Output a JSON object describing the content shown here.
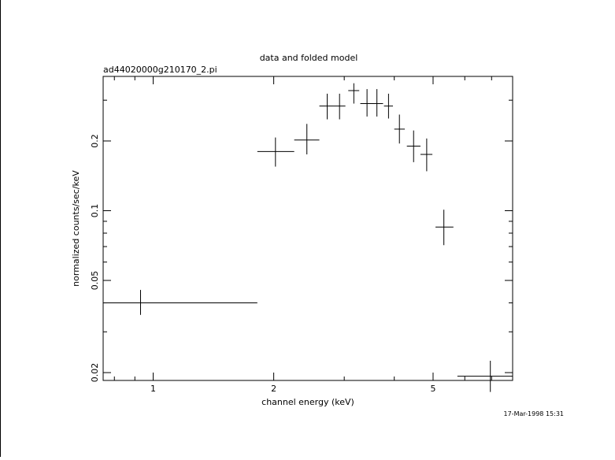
{
  "chart_data": {
    "type": "scatter",
    "title": "data and folded model",
    "subtitle": "ad44020000g210170_2.pi",
    "xlabel": "channel energy (keV)",
    "ylabel": "normalized counts/sec/keV",
    "timestamp": "17-Mar-1998 15:31",
    "x_scale": "log",
    "y_scale": "log",
    "xlim": [
      0.75,
      7.9
    ],
    "ylim": [
      0.0185,
      0.38
    ],
    "x_ticks": [
      {
        "value": 1,
        "label": "1"
      },
      {
        "value": 2,
        "label": "2"
      },
      {
        "value": 5,
        "label": "5"
      }
    ],
    "y_ticks": [
      {
        "value": 0.02,
        "label": "0.02"
      },
      {
        "value": 0.05,
        "label": "0.05"
      },
      {
        "value": 0.1,
        "label": "0.1"
      },
      {
        "value": 0.2,
        "label": "0.2"
      }
    ],
    "grid": false,
    "series": [
      {
        "points": [
          {
            "x": 0.93,
            "x_lo": 0.75,
            "x_hi": 1.82,
            "y": 0.04,
            "y_lo": 0.0355,
            "y_hi": 0.0455
          },
          {
            "x": 2.02,
            "x_lo": 1.82,
            "x_hi": 2.25,
            "y": 0.18,
            "y_lo": 0.155,
            "y_hi": 0.207
          },
          {
            "x": 2.42,
            "x_lo": 2.25,
            "x_hi": 2.6,
            "y": 0.202,
            "y_lo": 0.175,
            "y_hi": 0.237
          },
          {
            "x": 2.72,
            "x_lo": 2.6,
            "x_hi": 2.82,
            "y": 0.283,
            "y_lo": 0.248,
            "y_hi": 0.32
          },
          {
            "x": 2.92,
            "x_lo": 2.82,
            "x_hi": 3.02,
            "y": 0.283,
            "y_lo": 0.248,
            "y_hi": 0.32
          },
          {
            "x": 3.17,
            "x_lo": 3.07,
            "x_hi": 3.27,
            "y": 0.33,
            "y_lo": 0.29,
            "y_hi": 0.355
          },
          {
            "x": 3.42,
            "x_lo": 3.29,
            "x_hi": 3.55,
            "y": 0.29,
            "y_lo": 0.255,
            "y_hi": 0.335
          },
          {
            "x": 3.62,
            "x_lo": 3.53,
            "x_hi": 3.75,
            "y": 0.29,
            "y_lo": 0.255,
            "y_hi": 0.335
          },
          {
            "x": 3.87,
            "x_lo": 3.77,
            "x_hi": 3.97,
            "y": 0.283,
            "y_lo": 0.25,
            "y_hi": 0.32
          },
          {
            "x": 4.12,
            "x_lo": 4.0,
            "x_hi": 4.25,
            "y": 0.225,
            "y_lo": 0.195,
            "y_hi": 0.26
          },
          {
            "x": 4.47,
            "x_lo": 4.3,
            "x_hi": 4.65,
            "y": 0.19,
            "y_lo": 0.162,
            "y_hi": 0.222
          },
          {
            "x": 4.82,
            "x_lo": 4.65,
            "x_hi": 4.98,
            "y": 0.175,
            "y_lo": 0.148,
            "y_hi": 0.205
          },
          {
            "x": 5.32,
            "x_lo": 5.07,
            "x_hi": 5.62,
            "y": 0.085,
            "y_lo": 0.071,
            "y_hi": 0.101
          },
          {
            "x": 6.95,
            "x_lo": 5.75,
            "x_hi": 7.9,
            "y": 0.0193,
            "y_lo": 0.0165,
            "y_hi": 0.0225
          }
        ]
      }
    ]
  }
}
